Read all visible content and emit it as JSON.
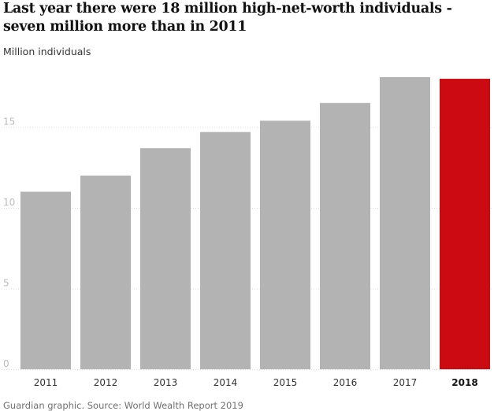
{
  "title": "Last year there were 18 million high-net-worth individuals - seven million more than in 2011",
  "subtitle": "Million individuals",
  "source": "Guardian graphic. Source: World Wealth Report 2019",
  "colors": {
    "bar": "#b3b3b3",
    "highlight": "#cc0a11",
    "grid": "#dcdcdc"
  },
  "chart_data": {
    "type": "bar",
    "title": "Last year there were 18 million high-net-worth individuals - seven million more than in 2011",
    "ylabel": "Million individuals",
    "xlabel": "",
    "categories": [
      "2011",
      "2012",
      "2013",
      "2014",
      "2015",
      "2016",
      "2017",
      "2018"
    ],
    "values": [
      11.0,
      12.0,
      13.7,
      14.7,
      15.4,
      16.5,
      18.1,
      18.0
    ],
    "highlight": "2018",
    "ylim": [
      0,
      18.1
    ],
    "yticks": [
      0,
      5,
      10,
      15
    ],
    "grid": true
  }
}
